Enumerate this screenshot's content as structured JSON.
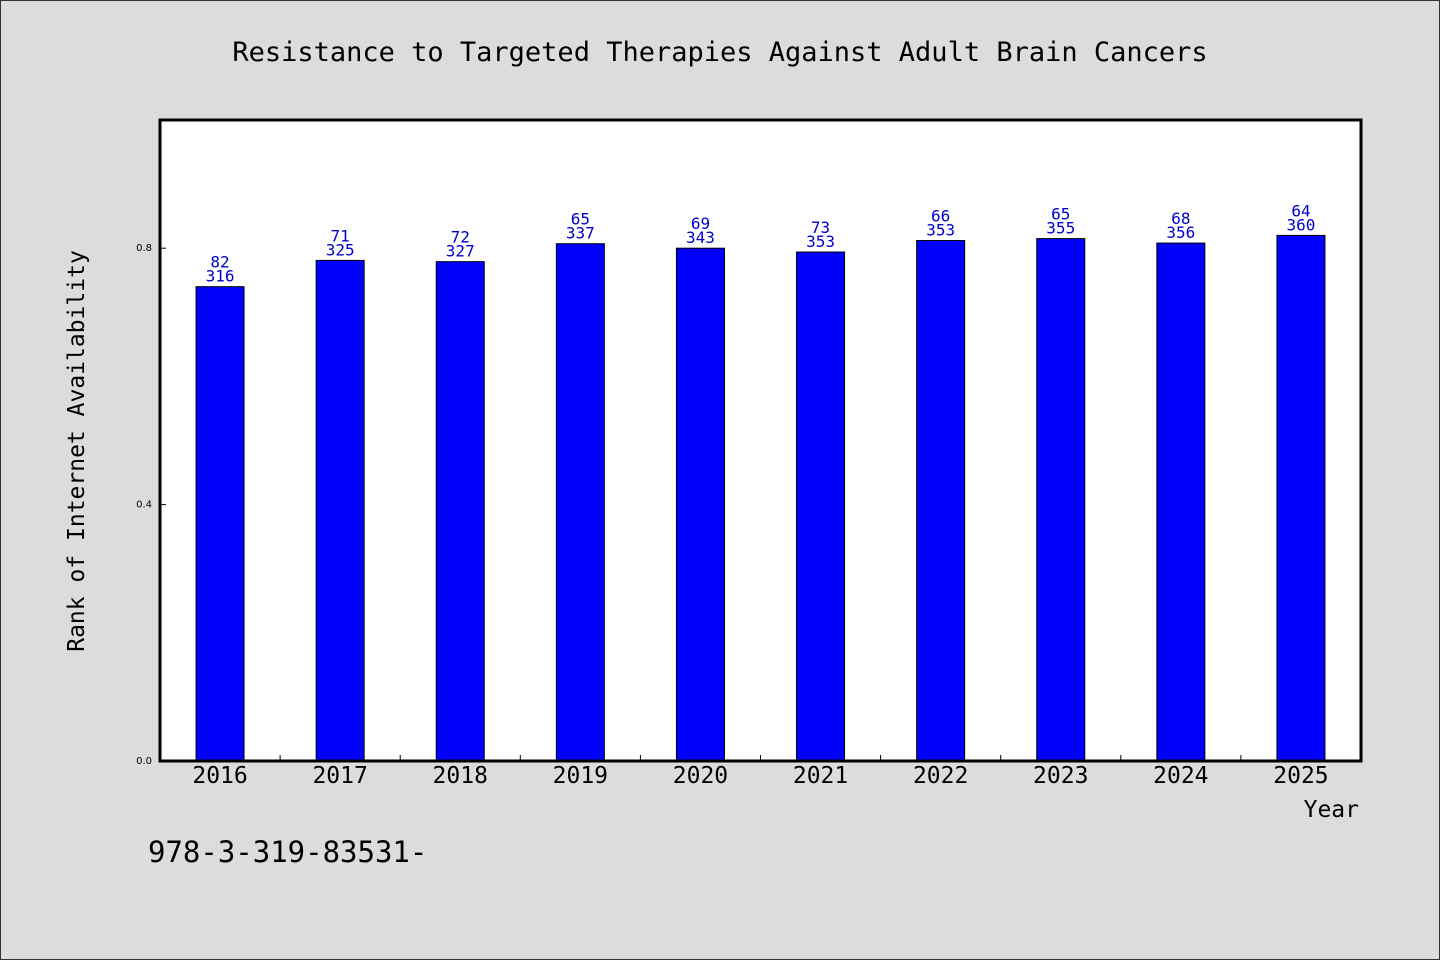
{
  "chart_data": {
    "type": "bar",
    "title": "Resistance to Targeted Therapies Against Adult Brain Cancers",
    "xlabel": "Year",
    "ylabel": "Rank of Internet Availability",
    "categories": [
      "2016",
      "2017",
      "2018",
      "2019",
      "2020",
      "2021",
      "2022",
      "2023",
      "2024",
      "2025"
    ],
    "series": [
      {
        "values": [
          0.74,
          0.781,
          0.779,
          0.807,
          0.8,
          0.794,
          0.812,
          0.815,
          0.808,
          0.82
        ],
        "labels_top": [
          "82",
          "71",
          "72",
          "65",
          "69",
          "73",
          "66",
          "65",
          "68",
          "64"
        ],
        "labels_bottom": [
          "316",
          "325",
          "327",
          "337",
          "343",
          "353",
          "353",
          "355",
          "356",
          "360"
        ]
      }
    ],
    "ylim": [
      0,
      1.0
    ],
    "yticks": [
      "0.0",
      "0.4",
      "0.8"
    ],
    "ytick_values": [
      0,
      0.4,
      0.8
    ],
    "grid": false,
    "legend": "none",
    "colors": {
      "bar_fill": "#0000ff",
      "bar_stroke": "#000000",
      "bar_label": "#0000cc",
      "plot_background": "#ffffff",
      "figure_background": "#dcdcdc"
    }
  },
  "footnote": "978-3-319-83531-"
}
